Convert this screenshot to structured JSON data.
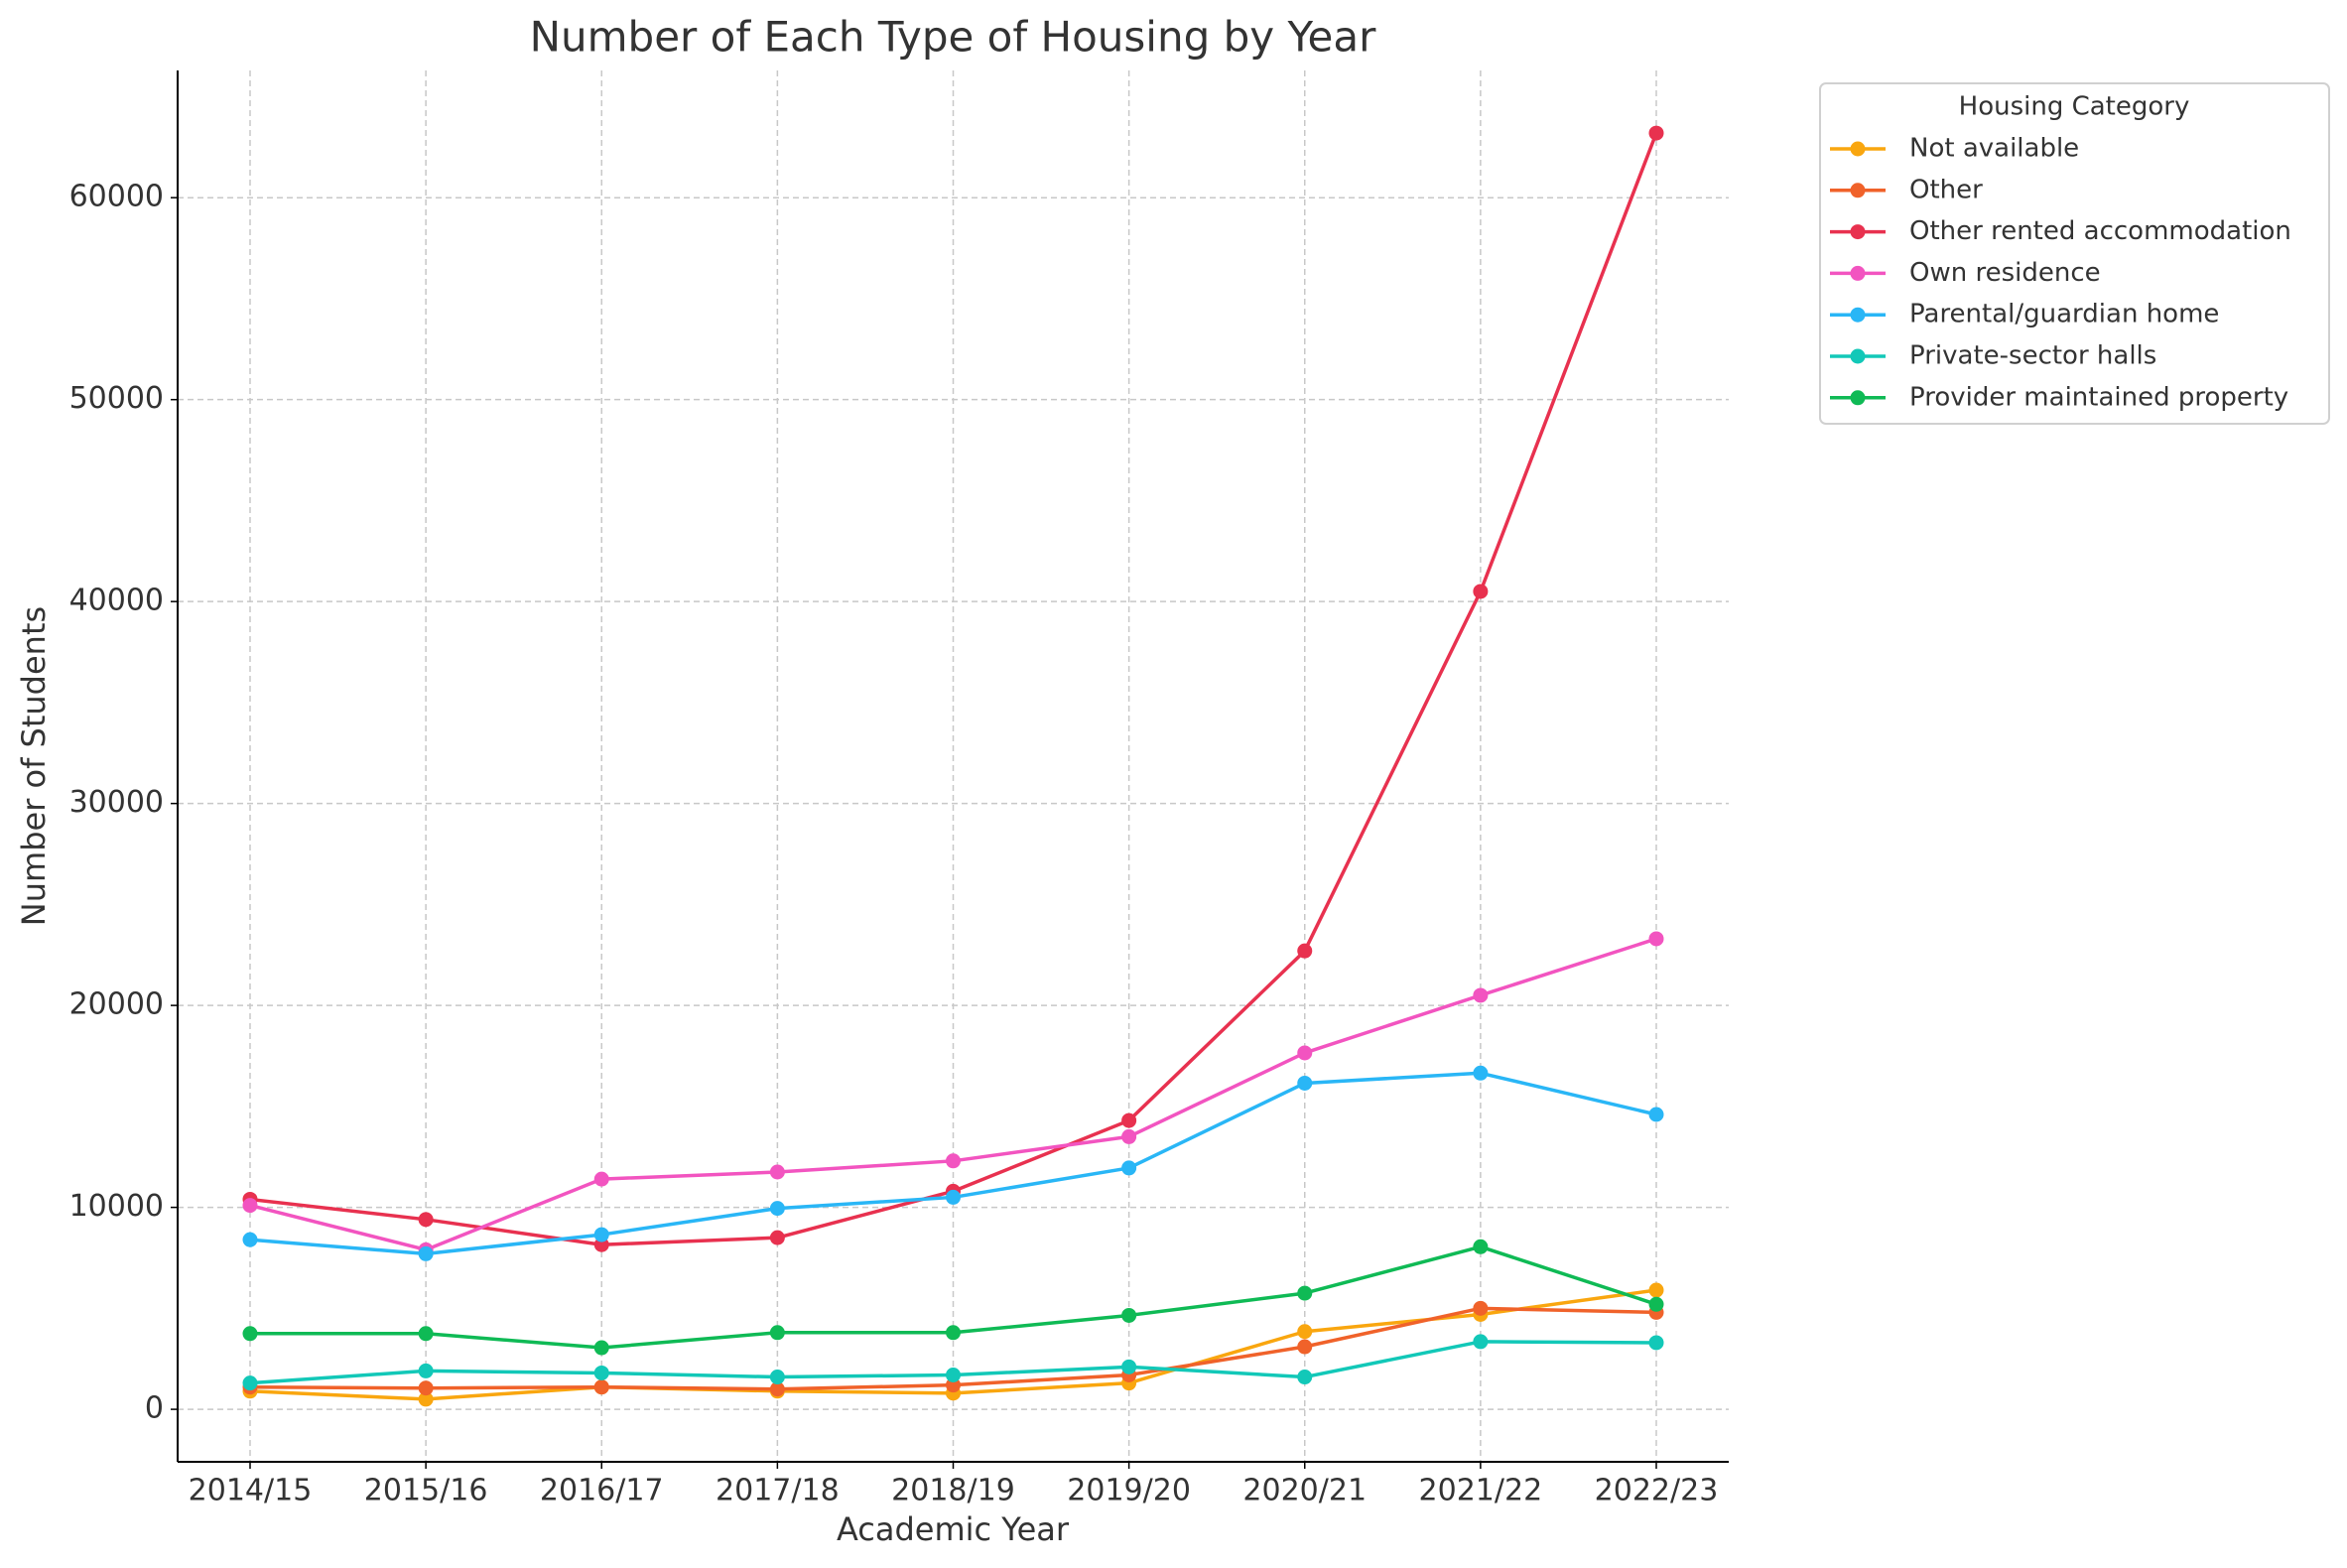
{
  "chart_data": {
    "type": "line",
    "title": "Number of Each Type of Housing by Year",
    "x_label": "Academic Year",
    "y_label": "Number of Students",
    "legend_title": "Housing Category",
    "legend_position": "outside upper right",
    "grid": true,
    "categories": [
      "2014/15",
      "2015/16",
      "2016/17",
      "2017/18",
      "2018/19",
      "2019/20",
      "2020/21",
      "2021/22",
      "2022/23"
    ],
    "ylim": [
      -2600,
      66300
    ],
    "yticks": [
      0,
      10000,
      20000,
      30000,
      40000,
      50000,
      60000
    ],
    "series": [
      {
        "name": "Not available",
        "color": "#f9a60f",
        "values": [
          900,
          500,
          1100,
          900,
          800,
          1300,
          3850,
          4700,
          5900
        ]
      },
      {
        "name": "Other",
        "color": "#f0622a",
        "values": [
          1100,
          1050,
          1100,
          1000,
          1200,
          1700,
          3100,
          5000,
          4800
        ]
      },
      {
        "name": "Other rented accommodation",
        "color": "#e8314f",
        "values": [
          10400,
          9400,
          8150,
          8500,
          10800,
          14300,
          22700,
          40500,
          63200
        ]
      },
      {
        "name": "Own residence",
        "color": "#f254c0",
        "values": [
          10100,
          7900,
          11400,
          11750,
          12300,
          13500,
          17650,
          20500,
          23300
        ]
      },
      {
        "name": "Parental/guardian home",
        "color": "#29b6f6",
        "values": [
          8400,
          7700,
          8650,
          9950,
          10500,
          11950,
          16150,
          16650,
          14600
        ]
      },
      {
        "name": "Private-sector halls",
        "color": "#12c8b8",
        "values": [
          1300,
          1900,
          1800,
          1600,
          1700,
          2100,
          1600,
          3350,
          3300
        ]
      },
      {
        "name": "Provider maintained property",
        "color": "#0fba55",
        "values": [
          3750,
          3750,
          3050,
          3800,
          3800,
          4650,
          5750,
          8050,
          5200
        ]
      }
    ]
  }
}
